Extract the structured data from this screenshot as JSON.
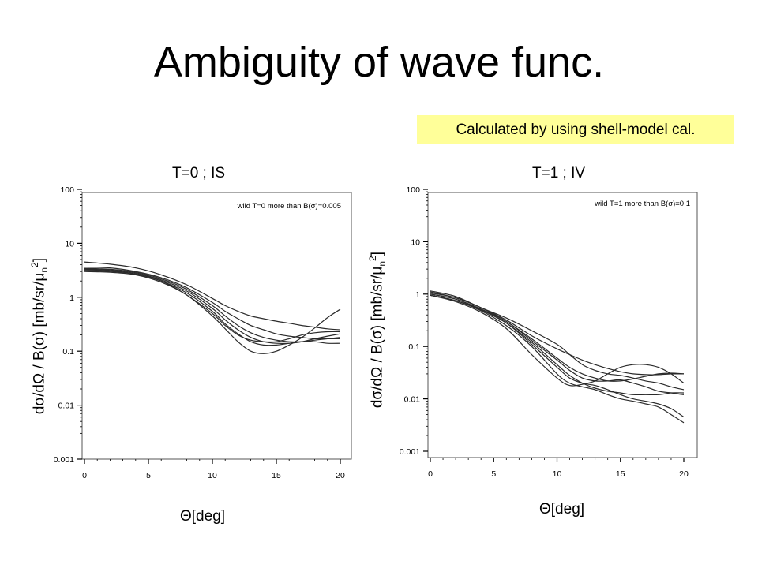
{
  "slide": {
    "title": "Ambiguity of wave func.",
    "note": "Calculated by using shell-model cal."
  },
  "chart_data": [
    {
      "type": "line",
      "title": "T=0 ; IS",
      "xlabel": "Θ[deg]",
      "ylabel_main": "dσ/dΩ / B(σ) [mb/sr/μ",
      "ylabel_sub": "n",
      "ylabel_sup": "2",
      "ylabel_end": "]",
      "legend": "wild T=0 more than B(σ)=0.005",
      "legend_position": "top-right",
      "xlim": [
        0,
        20
      ],
      "ylim": [
        0.001,
        100
      ],
      "yscale": "log",
      "xticks": [
        "0",
        "5",
        "10",
        "15",
        "20"
      ],
      "yticks": [
        "100",
        "10",
        "1",
        "0.1",
        "0.01",
        "0.001"
      ],
      "x": [
        0,
        2,
        4,
        6,
        8,
        10,
        11,
        12,
        13,
        14,
        15,
        16,
        17,
        18,
        19,
        20
      ],
      "series": [
        {
          "values": [
            4.5,
            4.1,
            3.5,
            2.6,
            1.7,
            0.95,
            0.7,
            0.55,
            0.45,
            0.4,
            0.36,
            0.33,
            0.3,
            0.28,
            0.26,
            0.25
          ]
        },
        {
          "values": [
            3.6,
            3.5,
            3.0,
            2.3,
            1.5,
            0.8,
            0.55,
            0.4,
            0.3,
            0.25,
            0.21,
            0.19,
            0.18,
            0.17,
            0.17,
            0.17
          ]
        },
        {
          "values": [
            3.4,
            3.3,
            2.9,
            2.2,
            1.4,
            0.7,
            0.45,
            0.3,
            0.22,
            0.18,
            0.16,
            0.15,
            0.15,
            0.16,
            0.17,
            0.18
          ]
        },
        {
          "values": [
            3.3,
            3.2,
            2.8,
            2.1,
            1.3,
            0.62,
            0.38,
            0.25,
            0.18,
            0.15,
            0.14,
            0.14,
            0.15,
            0.17,
            0.19,
            0.21
          ]
        },
        {
          "values": [
            3.2,
            3.1,
            2.7,
            2.0,
            1.2,
            0.55,
            0.32,
            0.21,
            0.15,
            0.13,
            0.13,
            0.14,
            0.15,
            0.15,
            0.14,
            0.14
          ]
        },
        {
          "values": [
            3.1,
            3.0,
            2.7,
            2.0,
            1.1,
            0.5,
            0.3,
            0.2,
            0.16,
            0.15,
            0.15,
            0.17,
            0.2,
            0.22,
            0.23,
            0.23
          ]
        },
        {
          "values": [
            3.0,
            2.9,
            2.6,
            1.9,
            1.1,
            0.45,
            0.26,
            0.15,
            0.1,
            0.09,
            0.1,
            0.13,
            0.18,
            0.27,
            0.42,
            0.6
          ]
        }
      ]
    },
    {
      "type": "line",
      "title": "T=1 ; IV",
      "xlabel": "Θ[deg]",
      "ylabel_main": "dσ/dΩ / B(σ) [mb/sr/μ",
      "ylabel_sub": "n",
      "ylabel_sup": "2",
      "ylabel_end": "]",
      "legend": "wild T=1 more than B(σ)=0.1",
      "legend_position": "top-right",
      "xlim": [
        0,
        20
      ],
      "ylim": [
        0.001,
        100
      ],
      "yscale": "log",
      "xticks": [
        "0",
        "5",
        "10",
        "15",
        "20"
      ],
      "yticks": [
        "100",
        "10",
        "1",
        "0.1",
        "0.01",
        "0.001"
      ],
      "x": [
        0,
        2,
        4,
        6,
        8,
        10,
        11,
        12,
        13,
        14,
        15,
        16,
        17,
        18,
        19,
        20
      ],
      "series": [
        {
          "values": [
            1.15,
            0.9,
            0.55,
            0.35,
            0.2,
            0.11,
            0.07,
            0.045,
            0.035,
            0.03,
            0.028,
            0.025,
            0.022,
            0.02,
            0.017,
            0.015
          ]
        },
        {
          "values": [
            1.1,
            0.85,
            0.55,
            0.32,
            0.16,
            0.09,
            0.07,
            0.055,
            0.045,
            0.038,
            0.033,
            0.03,
            0.029,
            0.029,
            0.03,
            0.03
          ]
        },
        {
          "values": [
            1.05,
            0.85,
            0.55,
            0.3,
            0.14,
            0.06,
            0.04,
            0.03,
            0.025,
            0.022,
            0.022,
            0.024,
            0.027,
            0.03,
            0.031,
            0.03
          ]
        },
        {
          "values": [
            1.0,
            0.8,
            0.52,
            0.3,
            0.13,
            0.055,
            0.035,
            0.025,
            0.022,
            0.022,
            0.023,
            0.02,
            0.017,
            0.014,
            0.013,
            0.012
          ]
        },
        {
          "values": [
            1.0,
            0.8,
            0.5,
            0.28,
            0.12,
            0.045,
            0.028,
            0.02,
            0.016,
            0.014,
            0.013,
            0.012,
            0.012,
            0.012,
            0.013,
            0.013
          ]
        },
        {
          "values": [
            0.95,
            0.75,
            0.5,
            0.28,
            0.11,
            0.04,
            0.025,
            0.02,
            0.018,
            0.015,
            0.012,
            0.01,
            0.009,
            0.008,
            0.0065,
            0.0045
          ]
        },
        {
          "values": [
            0.95,
            0.75,
            0.48,
            0.25,
            0.1,
            0.03,
            0.02,
            0.017,
            0.015,
            0.012,
            0.01,
            0.009,
            0.008,
            0.007,
            0.005,
            0.0035
          ]
        },
        {
          "values": [
            0.95,
            0.72,
            0.45,
            0.22,
            0.07,
            0.025,
            0.018,
            0.019,
            0.022,
            0.03,
            0.04,
            0.045,
            0.045,
            0.04,
            0.03,
            0.02
          ]
        }
      ]
    }
  ]
}
